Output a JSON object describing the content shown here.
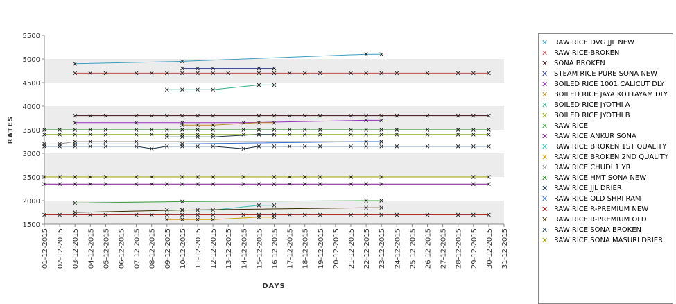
{
  "chart_data": {
    "type": "line",
    "xlabel": "DAYS",
    "ylabel": "RATES",
    "ylim": [
      1500,
      5500
    ],
    "yticks": [
      1500,
      2000,
      2500,
      3000,
      3500,
      4000,
      4500,
      5000,
      5500
    ],
    "x": [
      "01-12-2015",
      "02-12-2015",
      "03-12-2015",
      "04-12-2015",
      "05-12-2015",
      "06-12-2015",
      "07-12-2015",
      "08-12-2015",
      "09-12-2015",
      "10-12-2015",
      "11-12-2015",
      "12-12-2015",
      "13-12-2015",
      "14-12-2015",
      "15-12-2015",
      "16-12-2015",
      "17-12-2015",
      "18-12-2015",
      "19-12-2015",
      "20-12-2015",
      "21-12-2015",
      "22-12-2015",
      "23-12-2015",
      "24-12-2015",
      "25-12-2015",
      "26-12-2015",
      "27-12-2015",
      "28-12-2015",
      "29-12-2015",
      "30-12-2015",
      "31-12-2015"
    ],
    "legend_position": "right",
    "grid": "alternating horizontal bands",
    "series": [
      {
        "name": "RAW RICE DVG JJL NEW",
        "color": "#3a9fc0",
        "points": [
          [
            3,
            4900
          ],
          [
            10,
            4950
          ],
          [
            22,
            5100
          ],
          [
            23,
            5100
          ]
        ]
      },
      {
        "name": "RAW RICE-BROKEN",
        "color": "#c05050",
        "points": [
          [
            3,
            4700
          ],
          [
            4,
            4700
          ],
          [
            5,
            4700
          ],
          [
            7,
            4700
          ],
          [
            8,
            4700
          ],
          [
            9,
            4700
          ],
          [
            10,
            4700
          ],
          [
            11,
            4700
          ],
          [
            12,
            4700
          ],
          [
            13,
            4700
          ],
          [
            15,
            4700
          ],
          [
            16,
            4700
          ],
          [
            17,
            4700
          ],
          [
            18,
            4700
          ],
          [
            19,
            4700
          ],
          [
            21,
            4700
          ],
          [
            22,
            4700
          ],
          [
            23,
            4700
          ],
          [
            24,
            4700
          ],
          [
            26,
            4700
          ],
          [
            28,
            4700
          ],
          [
            29,
            4700
          ],
          [
            30,
            4700
          ]
        ]
      },
      {
        "name": "SONA BROKEN",
        "color": "#3a1010",
        "points": [
          [
            3,
            3800
          ],
          [
            4,
            3800
          ],
          [
            5,
            3800
          ],
          [
            7,
            3800
          ],
          [
            8,
            3800
          ],
          [
            9,
            3800
          ],
          [
            10,
            3800
          ],
          [
            11,
            3800
          ],
          [
            12,
            3800
          ],
          [
            15,
            3800
          ],
          [
            16,
            3800
          ],
          [
            17,
            3800
          ],
          [
            18,
            3800
          ],
          [
            19,
            3800
          ],
          [
            21,
            3800
          ],
          [
            22,
            3800
          ],
          [
            23,
            3800
          ],
          [
            24,
            3800
          ],
          [
            26,
            3800
          ],
          [
            28,
            3800
          ],
          [
            29,
            3800
          ],
          [
            30,
            3800
          ]
        ]
      },
      {
        "name": "STEAM RICE PURE SONA NEW",
        "color": "#2a3a90",
        "points": [
          [
            10,
            4800
          ],
          [
            11,
            4800
          ],
          [
            12,
            4800
          ],
          [
            15,
            4800
          ],
          [
            16,
            4800
          ]
        ]
      },
      {
        "name": "BOILED RICE 1001 CALICUT DLY",
        "color": "#9a30c0",
        "points": [
          [
            3,
            3650
          ],
          [
            7,
            3650
          ],
          [
            10,
            3650
          ],
          [
            14,
            3650
          ],
          [
            22,
            3700
          ],
          [
            23,
            3700
          ]
        ]
      },
      {
        "name": "BOILED RICE JAYA KOTTAYAM DLY",
        "color": "#c08a20",
        "points": [
          [
            10,
            3600
          ],
          [
            11,
            3600
          ],
          [
            12,
            3600
          ],
          [
            15,
            3650
          ],
          [
            16,
            3650
          ]
        ]
      },
      {
        "name": "BOILED RICE JYOTHI A",
        "color": "#30b08a",
        "points": [
          [
            9,
            4350
          ],
          [
            10,
            4350
          ],
          [
            11,
            4350
          ],
          [
            12,
            4350
          ],
          [
            15,
            4450
          ],
          [
            16,
            4450
          ]
        ]
      },
      {
        "name": "BOILED RICE JYOTHI B",
        "color": "#8aaa20",
        "points": [
          [
            1,
            3400
          ],
          [
            2,
            3400
          ],
          [
            3,
            3400
          ],
          [
            4,
            3400
          ],
          [
            5,
            3400
          ],
          [
            7,
            3400
          ],
          [
            8,
            3400
          ],
          [
            9,
            3400
          ],
          [
            10,
            3400
          ],
          [
            11,
            3400
          ],
          [
            12,
            3400
          ],
          [
            14,
            3400
          ],
          [
            15,
            3400
          ],
          [
            16,
            3400
          ],
          [
            17,
            3400
          ],
          [
            18,
            3400
          ],
          [
            19,
            3400
          ],
          [
            21,
            3400
          ],
          [
            22,
            3400
          ],
          [
            23,
            3400
          ],
          [
            24,
            3400
          ],
          [
            26,
            3400
          ],
          [
            28,
            3400
          ],
          [
            29,
            3400
          ],
          [
            30,
            3400
          ]
        ]
      },
      {
        "name": "RAW RICE",
        "color": "#40a040",
        "points": [
          [
            3,
            1950
          ],
          [
            10,
            1980
          ],
          [
            22,
            2000
          ],
          [
            23,
            2000
          ]
        ]
      },
      {
        "name": "RAW RICE ANKUR SONA",
        "color": "#7a1a8a",
        "points": [
          [
            1,
            2350
          ],
          [
            2,
            2350
          ],
          [
            3,
            2350
          ],
          [
            4,
            2350
          ],
          [
            5,
            2350
          ],
          [
            7,
            2350
          ],
          [
            8,
            2350
          ],
          [
            9,
            2350
          ],
          [
            10,
            2350
          ],
          [
            11,
            2350
          ],
          [
            12,
            2350
          ],
          [
            14,
            2350
          ],
          [
            15,
            2350
          ],
          [
            16,
            2350
          ],
          [
            17,
            2350
          ],
          [
            18,
            2350
          ],
          [
            19,
            2350
          ],
          [
            21,
            2350
          ],
          [
            22,
            2350
          ],
          [
            23,
            2350
          ],
          [
            29,
            2350
          ],
          [
            30,
            2350
          ]
        ]
      },
      {
        "name": "RAW RICE BROKEN 1ST QUALITY",
        "color": "#30c0b0",
        "points": [
          [
            9,
            1800
          ],
          [
            10,
            1800
          ],
          [
            11,
            1800
          ],
          [
            12,
            1800
          ],
          [
            15,
            1900
          ],
          [
            16,
            1900
          ]
        ]
      },
      {
        "name": "RAW RICE BROKEN 2ND QUALITY",
        "color": "#d0a000",
        "points": [
          [
            9,
            1600
          ],
          [
            10,
            1600
          ],
          [
            11,
            1600
          ],
          [
            12,
            1600
          ],
          [
            15,
            1650
          ],
          [
            16,
            1650
          ]
        ]
      },
      {
        "name": "RAW RICE CHUDI 1 YR",
        "color": "#909090",
        "points": [
          [
            1,
            3200
          ],
          [
            2,
            3200
          ],
          [
            3,
            3250
          ],
          [
            4,
            3250
          ],
          [
            5,
            3250
          ],
          [
            7,
            3250
          ],
          [
            22,
            3250
          ],
          [
            23,
            3250
          ]
        ]
      },
      {
        "name": "RAW RICE HMT SONA NEW",
        "color": "#1a8a1a",
        "points": [
          [
            1,
            3500
          ],
          [
            2,
            3500
          ],
          [
            3,
            3500
          ],
          [
            4,
            3500
          ],
          [
            5,
            3500
          ],
          [
            7,
            3500
          ],
          [
            8,
            3500
          ],
          [
            9,
            3500
          ],
          [
            10,
            3500
          ],
          [
            11,
            3500
          ],
          [
            12,
            3500
          ],
          [
            14,
            3500
          ],
          [
            15,
            3500
          ],
          [
            16,
            3500
          ],
          [
            17,
            3500
          ],
          [
            18,
            3500
          ],
          [
            19,
            3500
          ],
          [
            21,
            3500
          ],
          [
            22,
            3500
          ],
          [
            23,
            3500
          ],
          [
            24,
            3500
          ],
          [
            26,
            3500
          ],
          [
            28,
            3500
          ],
          [
            29,
            3500
          ],
          [
            30,
            3500
          ]
        ]
      },
      {
        "name": "RAW RICE JJL DRIER",
        "color": "#102a4a",
        "points": [
          [
            1,
            3150
          ],
          [
            2,
            3150
          ],
          [
            3,
            3150
          ],
          [
            4,
            3150
          ],
          [
            5,
            3150
          ],
          [
            7,
            3150
          ],
          [
            8,
            3100
          ],
          [
            9,
            3150
          ],
          [
            10,
            3150
          ],
          [
            11,
            3150
          ],
          [
            12,
            3150
          ],
          [
            14,
            3100
          ],
          [
            15,
            3150
          ],
          [
            16,
            3150
          ],
          [
            17,
            3150
          ],
          [
            18,
            3150
          ],
          [
            19,
            3150
          ],
          [
            21,
            3150
          ],
          [
            22,
            3150
          ],
          [
            23,
            3150
          ],
          [
            24,
            3150
          ],
          [
            26,
            3150
          ],
          [
            28,
            3150
          ],
          [
            29,
            3150
          ],
          [
            30,
            3150
          ]
        ]
      },
      {
        "name": "RAW RICE OLD SHRI RAM",
        "color": "#3070d0",
        "points": [
          [
            3,
            3200
          ],
          [
            10,
            3200
          ],
          [
            22,
            3250
          ],
          [
            23,
            3250
          ]
        ]
      },
      {
        "name": "RAW RICE R-PREMIUM NEW",
        "color": "#a01010",
        "points": [
          [
            1,
            1700
          ],
          [
            2,
            1700
          ],
          [
            3,
            1700
          ],
          [
            4,
            1700
          ],
          [
            5,
            1700
          ],
          [
            7,
            1700
          ],
          [
            8,
            1700
          ],
          [
            9,
            1700
          ],
          [
            10,
            1700
          ],
          [
            11,
            1700
          ],
          [
            12,
            1700
          ],
          [
            14,
            1700
          ],
          [
            15,
            1700
          ],
          [
            16,
            1700
          ],
          [
            17,
            1700
          ],
          [
            18,
            1700
          ],
          [
            19,
            1700
          ],
          [
            21,
            1700
          ],
          [
            22,
            1700
          ],
          [
            23,
            1700
          ],
          [
            24,
            1700
          ],
          [
            26,
            1700
          ],
          [
            28,
            1700
          ],
          [
            29,
            1700
          ],
          [
            30,
            1700
          ]
        ]
      },
      {
        "name": "RAW RICE R-PREMIUM OLD",
        "color": "#3a2a00",
        "points": [
          [
            3,
            1750
          ],
          [
            10,
            1800
          ],
          [
            22,
            1850
          ],
          [
            23,
            1850
          ]
        ]
      },
      {
        "name": "RAW RICE SONA BROKEN",
        "color": "#1a3a4a",
        "points": [
          [
            9,
            3350
          ],
          [
            10,
            3350
          ],
          [
            11,
            3350
          ],
          [
            12,
            3350
          ],
          [
            15,
            3400
          ],
          [
            16,
            3400
          ]
        ]
      },
      {
        "name": "RAW RICE SONA MASURI DRIER",
        "color": "#a0a000",
        "points": [
          [
            1,
            2500
          ],
          [
            2,
            2500
          ],
          [
            3,
            2500
          ],
          [
            4,
            2500
          ],
          [
            5,
            2500
          ],
          [
            7,
            2500
          ],
          [
            8,
            2500
          ],
          [
            10,
            2500
          ],
          [
            11,
            2500
          ],
          [
            12,
            2500
          ],
          [
            14,
            2500
          ],
          [
            16,
            2500
          ],
          [
            17,
            2500
          ],
          [
            18,
            2500
          ],
          [
            19,
            2500
          ],
          [
            21,
            2500
          ],
          [
            23,
            2500
          ],
          [
            29,
            2500
          ],
          [
            30,
            2500
          ]
        ]
      }
    ]
  },
  "legend": [
    {
      "label": "RAW RICE DVG JJL NEW",
      "color": "#3a9fc0"
    },
    {
      "label": "RAW RICE-BROKEN",
      "color": "#c05050"
    },
    {
      "label": "SONA BROKEN",
      "color": "#3a1010"
    },
    {
      "label": "STEAM RICE PURE SONA NEW",
      "color": "#2a3a90"
    },
    {
      "label": "BOILED RICE 1001 CALICUT DLY",
      "color": "#9a30c0"
    },
    {
      "label": "BOILED RICE JAYA KOTTAYAM DLY",
      "color": "#c08a20"
    },
    {
      "label": "BOILED RICE JYOTHI A",
      "color": "#30b08a"
    },
    {
      "label": "BOILED RICE JYOTHI B",
      "color": "#8aaa20"
    },
    {
      "label": "RAW RICE",
      "color": "#40a040"
    },
    {
      "label": "RAW RICE ANKUR SONA",
      "color": "#7a1a8a"
    },
    {
      "label": "RAW RICE BROKEN 1ST QUALITY",
      "color": "#30c0b0"
    },
    {
      "label": "RAW RICE BROKEN 2ND QUALITY",
      "color": "#d0a000"
    },
    {
      "label": "RAW RICE CHUDI 1 YR",
      "color": "#909090"
    },
    {
      "label": "RAW RICE HMT SONA NEW",
      "color": "#1a8a1a"
    },
    {
      "label": "RAW RICE JJL DRIER",
      "color": "#102a4a"
    },
    {
      "label": "RAW RICE OLD SHRI RAM",
      "color": "#3070d0"
    },
    {
      "label": "RAW RICE R-PREMIUM NEW",
      "color": "#a01010"
    },
    {
      "label": "RAW RICE R-PREMIUM OLD",
      "color": "#3a2a00"
    },
    {
      "label": "RAW RICE SONA BROKEN",
      "color": "#1a3a4a"
    },
    {
      "label": "RAW RICE SONA MASURI DRIER",
      "color": "#a0a000"
    }
  ]
}
